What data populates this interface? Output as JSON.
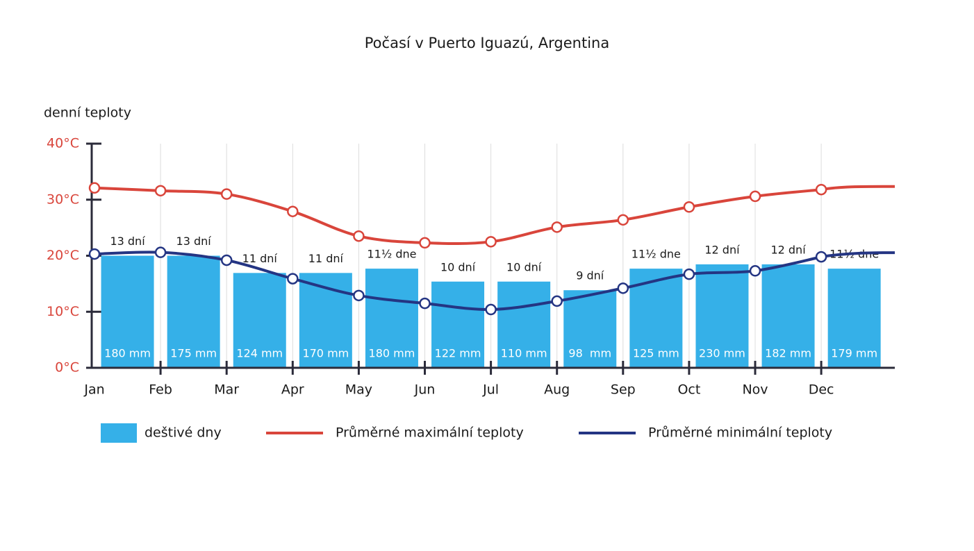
{
  "chart_data": {
    "type": "bar-line",
    "title": "Počasí v Puerto Iguazú, Argentina",
    "y_axis_label": "denní teploty",
    "categories": [
      "Jan",
      "Feb",
      "Mar",
      "Apr",
      "May",
      "Jun",
      "Jul",
      "Aug",
      "Sep",
      "Oct",
      "Nov",
      "Dec"
    ],
    "ylim": [
      0,
      40
    ],
    "yticks": [
      {
        "value": 0,
        "label": "0°C"
      },
      {
        "value": 10,
        "label": "10°C"
      },
      {
        "value": 20,
        "label": "20°C"
      },
      {
        "value": 30,
        "label": "30°C"
      },
      {
        "value": 40,
        "label": "40°C"
      }
    ],
    "y2lim": [
      0,
      26
    ],
    "grid": true,
    "series": [
      {
        "name": "deštivé dny",
        "type": "bar",
        "axis": "y2",
        "color": "#35b0e8",
        "values": [
          13,
          13,
          11,
          11,
          11.5,
          10,
          10,
          9,
          11.5,
          12,
          12,
          11.5
        ],
        "value_labels": [
          "13 dní",
          "13 dní",
          "11 dní",
          "11 dní",
          "11½ dne",
          "10 dní",
          "10 dní",
          "9 dní",
          "11½ dne",
          "12 dní",
          "12 dní",
          "11½ dne"
        ]
      },
      {
        "name": "Průměrné maximální teploty",
        "type": "line",
        "color": "#d9453b",
        "values": [
          32.1,
          31.6,
          31.0,
          27.9,
          23.5,
          22.3,
          22.5,
          25.1,
          26.4,
          28.7,
          30.6,
          31.8
        ]
      },
      {
        "name": "Průměrné minimální teploty",
        "type": "line",
        "color": "#243583",
        "values": [
          20.3,
          20.6,
          19.2,
          15.9,
          12.9,
          11.5,
          10.4,
          11.9,
          14.2,
          16.7,
          17.3,
          19.8
        ]
      }
    ],
    "precipitation": {
      "values": [
        180,
        175,
        124,
        170,
        180,
        122,
        110,
        98,
        125,
        230,
        182,
        179
      ],
      "value_labels": [
        "180 mm",
        "175 mm",
        "124 mm",
        "170 mm",
        "180 mm",
        "122 mm",
        "110 mm",
        "98  mm",
        "125 mm",
        "230 mm",
        "182 mm",
        "179 mm"
      ]
    }
  }
}
